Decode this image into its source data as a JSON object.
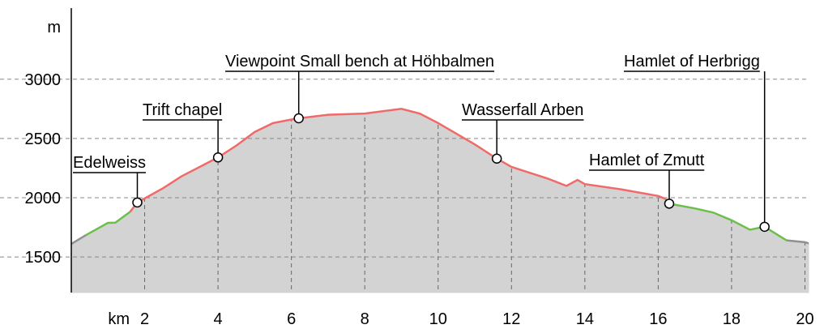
{
  "chart_data": {
    "type": "area",
    "x_label": "km",
    "y_label": "m",
    "xlim": [
      0,
      20.1
    ],
    "ylim": [
      1200,
      3600
    ],
    "xticks": [
      2,
      4,
      6,
      8,
      10,
      12,
      14,
      16,
      18,
      20
    ],
    "yticks": [
      1500,
      2000,
      2500,
      3000
    ],
    "grid": true,
    "fill": "#d3d3d3",
    "series": [
      {
        "color": "#909090",
        "x": [
          0,
          0.4
        ],
        "values": [
          1610,
          1685
        ]
      },
      {
        "color": "#6cbf4a",
        "x": [
          0.4,
          1.0,
          1.2,
          1.6
        ],
        "values": [
          1685,
          1788,
          1790,
          1880
        ]
      },
      {
        "color": "#f06a6a",
        "x": [
          1.6,
          1.8,
          2.5,
          3.0,
          4.0,
          4.5,
          5.0,
          5.5,
          6.0,
          6.2,
          7.0,
          8.0,
          9.0,
          9.5,
          10,
          11,
          11.6,
          12,
          13,
          13.5,
          13.8,
          14,
          15,
          16,
          16.2
        ],
        "values": [
          1880,
          1960,
          2080,
          2180,
          2340,
          2440,
          2555,
          2630,
          2660,
          2670,
          2700,
          2710,
          2750,
          2710,
          2630,
          2450,
          2330,
          2260,
          2160,
          2100,
          2150,
          2115,
          2070,
          2015,
          1990
        ]
      },
      {
        "color": "#6cbf4a",
        "x": [
          16.2,
          16.3,
          17,
          17.5,
          18,
          18.5,
          18.9,
          19.5
        ],
        "values": [
          1990,
          1950,
          1910,
          1875,
          1810,
          1730,
          1755,
          1640
        ]
      },
      {
        "color": "#909090",
        "x": [
          19.5,
          20,
          20.1
        ],
        "values": [
          1640,
          1625,
          1615
        ]
      }
    ],
    "annotations": [
      {
        "label": "Edelweiss",
        "x": 1.8,
        "y": 1960
      },
      {
        "label": "Trift chapel",
        "x": 4.0,
        "y": 2340
      },
      {
        "label": "Viewpoint Small bench at Höhbalmen",
        "x": 6.2,
        "y": 2670
      },
      {
        "label": "Wasserfall Arben",
        "x": 11.6,
        "y": 2330
      },
      {
        "label": "Hamlet of Zmutt",
        "x": 16.3,
        "y": 1950
      },
      {
        "label": "Hamlet of Herbrigg",
        "x": 18.9,
        "y": 1755
      }
    ]
  }
}
